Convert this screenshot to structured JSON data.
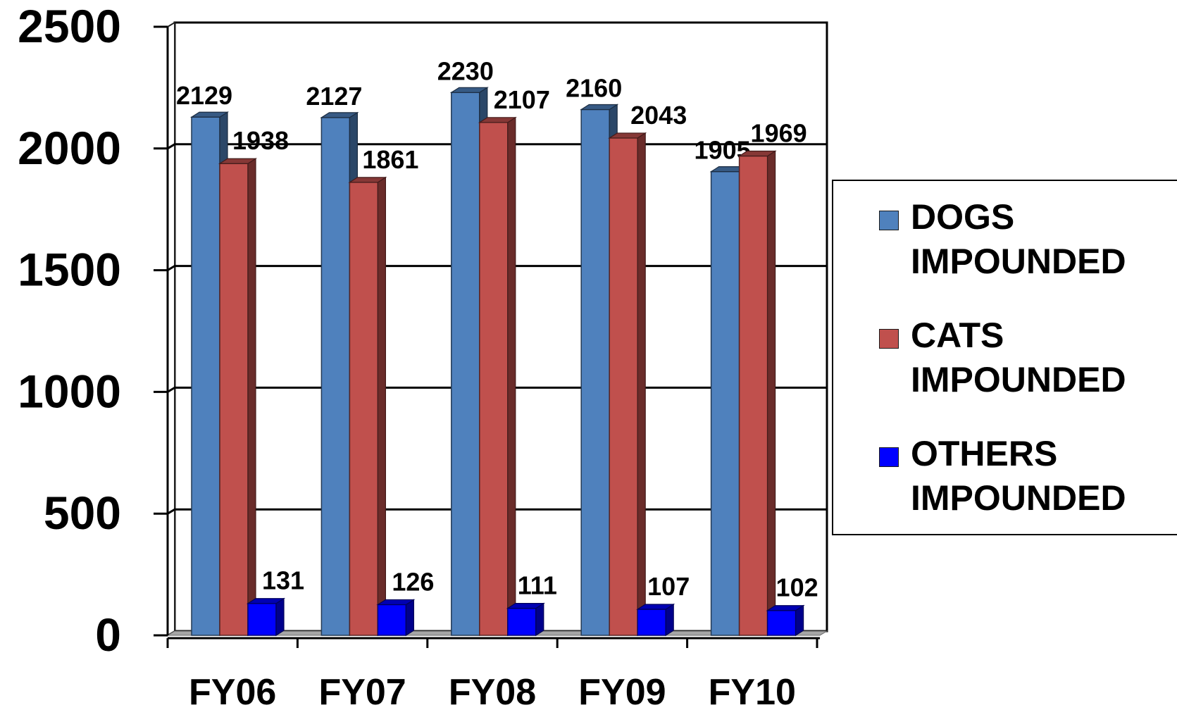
{
  "chart_data": {
    "type": "bar",
    "categories": [
      "FY06",
      "FY07",
      "FY08",
      "FY09",
      "FY10"
    ],
    "series": [
      {
        "name": "DOGS IMPOUNDED",
        "lines": [
          "DOGS",
          "IMPOUNDED"
        ],
        "color": "#4f81bd",
        "values": [
          2129,
          2127,
          2230,
          2160,
          1905
        ]
      },
      {
        "name": "CATS IMPOUNDED",
        "lines": [
          "CATS",
          "IMPOUNDED"
        ],
        "color": "#c0504d",
        "values": [
          1938,
          1861,
          2107,
          2043,
          1969
        ]
      },
      {
        "name": "OTHERS IMPOUNDED",
        "lines": [
          "OTHERS",
          "IMPOUNDED"
        ],
        "color": "#0000ff",
        "values": [
          131,
          126,
          111,
          107,
          102
        ]
      }
    ],
    "yticks": [
      "0",
      "500",
      "1000",
      "1500",
      "2000",
      "2500"
    ],
    "ylim": [
      0,
      2500
    ],
    "grid": true,
    "legend": "right"
  }
}
